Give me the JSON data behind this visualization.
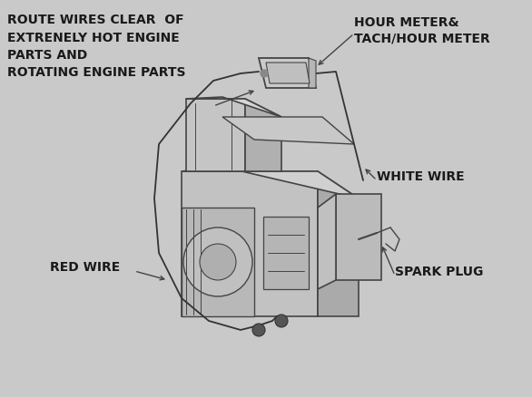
{
  "bg_color": "#c8c8c8",
  "text_color": "#1a1a1a",
  "line_color": "#444444",
  "labels": {
    "top_left": "ROUTE WIRES CLEAR  OF\nEXTRENELY HOT ENGINE\nPARTS AND\nROTATING ENGINE PARTS",
    "hour_meter_1": "HOUR METER&",
    "hour_meter_2": "TACH/HOUR METER",
    "white_wire": "WHITE WIRE",
    "red_wire": "RED WIRE",
    "spark_plug": "SPARK PLUG"
  },
  "font_size": 9.5
}
